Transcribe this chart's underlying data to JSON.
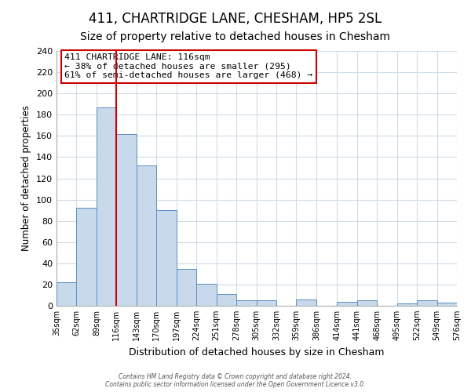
{
  "title": "411, CHARTRIDGE LANE, CHESHAM, HP5 2SL",
  "subtitle": "Size of property relative to detached houses in Chesham",
  "xlabel": "Distribution of detached houses by size in Chesham",
  "ylabel": "Number of detached properties",
  "bin_edges": [
    35,
    62,
    89,
    116,
    143,
    170,
    197,
    224,
    251,
    278,
    305,
    332,
    359,
    386,
    414,
    441,
    468,
    495,
    522,
    549,
    576
  ],
  "bar_heights": [
    22,
    92,
    187,
    162,
    132,
    90,
    35,
    21,
    11,
    5,
    5,
    0,
    6,
    0,
    4,
    5,
    0,
    2,
    5,
    3
  ],
  "bar_color": "#c9d9ec",
  "bar_edge_color": "#5a8fc0",
  "vline_x": 116,
  "vline_color": "#cc0000",
  "annotation_line1": "411 CHARTRIDGE LANE: 116sqm",
  "annotation_line2": "← 38% of detached houses are smaller (295)",
  "annotation_line3": "61% of semi-detached houses are larger (468) →",
  "annotation_box_facecolor": "#ffffff",
  "annotation_box_edgecolor": "#cc0000",
  "ylim": [
    0,
    240
  ],
  "yticks": [
    0,
    20,
    40,
    60,
    80,
    100,
    120,
    140,
    160,
    180,
    200,
    220,
    240
  ],
  "tick_labels": [
    "35sqm",
    "62sqm",
    "89sqm",
    "116sqm",
    "143sqm",
    "170sqm",
    "197sqm",
    "224sqm",
    "251sqm",
    "278sqm",
    "305sqm",
    "332sqm",
    "359sqm",
    "386sqm",
    "414sqm",
    "441sqm",
    "468sqm",
    "495sqm",
    "522sqm",
    "549sqm",
    "576sqm"
  ],
  "footer_line1": "Contains HM Land Registry data © Crown copyright and database right 2024.",
  "footer_line2": "Contains public sector information licensed under the Open Government Licence v3.0.",
  "fig_background": "#ffffff",
  "ax_background": "#ffffff",
  "grid_color": "#d0dce8",
  "title_fontsize": 12,
  "subtitle_fontsize": 10
}
